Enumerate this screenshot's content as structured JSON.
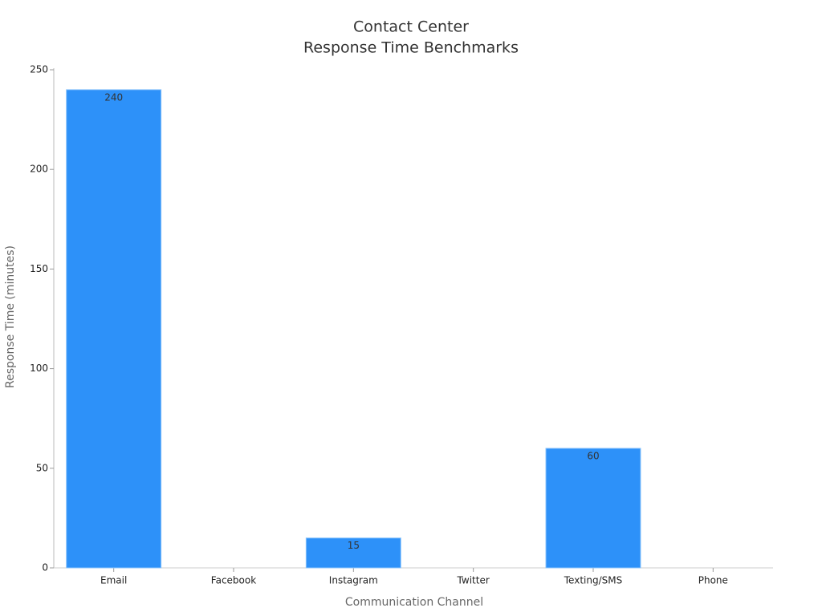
{
  "chart_data": {
    "type": "bar",
    "title": [
      "Contact Center",
      "Response Time Benchmarks"
    ],
    "x_label": "Communication Channel",
    "y_label": "Response Time (minutes)",
    "categories": [
      "Email",
      "Facebook",
      "Instagram",
      "Twitter",
      "Texting/SMS",
      "Phone"
    ],
    "values": [
      240,
      null,
      15,
      null,
      60,
      null
    ],
    "color": "#2d91f9",
    "ylim": [
      0,
      250
    ],
    "yticks": [
      0,
      50,
      100,
      150,
      200,
      250
    ],
    "grid": false
  }
}
